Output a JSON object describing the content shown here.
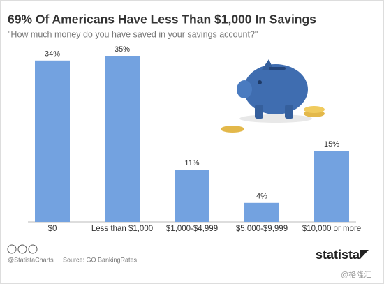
{
  "chart_data": {
    "type": "bar",
    "title": "69% Of Americans Have Less Than $1,000 In Savings",
    "subtitle": "\"How much money do you have saved in your savings account?\"",
    "categories": [
      "$0",
      "Less than $1,000",
      "$1,000-$4,999",
      "$5,000-$9,999",
      "$10,000 or more"
    ],
    "values": [
      34,
      35,
      11,
      4,
      15
    ],
    "value_labels": [
      "34%",
      "35%",
      "11%",
      "4%",
      "15%"
    ],
    "color": "#73a2e0",
    "credit": "@StatistaCharts",
    "source": "Source: GO BankingRates",
    "logo": "statista",
    "watermark": "@格隆汇"
  }
}
